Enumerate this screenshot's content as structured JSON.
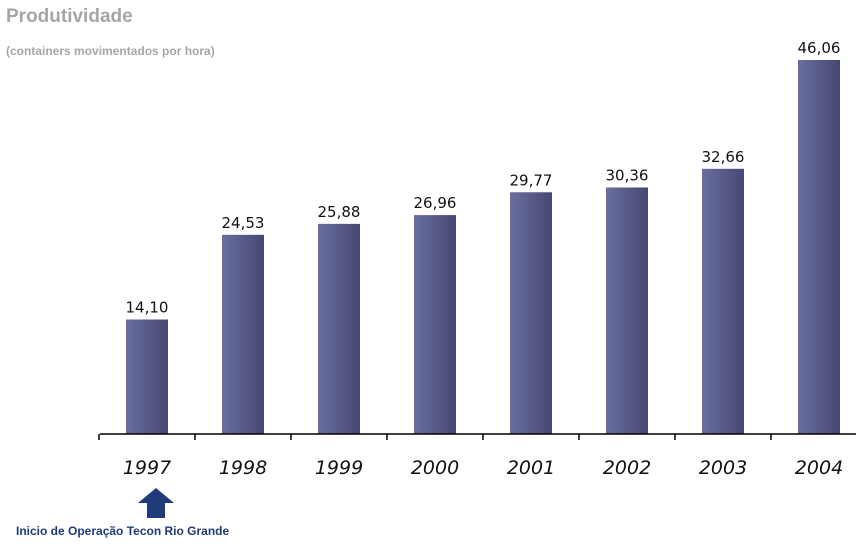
{
  "chart_data": {
    "type": "bar",
    "title": "Produtividade",
    "subtitle": "(containers movimentados por hora)",
    "categories": [
      "1997",
      "1998",
      "1999",
      "2000",
      "2001",
      "2002",
      "2003",
      "2004"
    ],
    "values": [
      14.1,
      24.53,
      25.88,
      26.96,
      29.77,
      30.36,
      32.66,
      46.06
    ],
    "value_labels": [
      "14,10",
      "24,53",
      "25,88",
      "26,96",
      "29,77",
      "30,36",
      "32,66",
      "46,06"
    ],
    "ylim": [
      0,
      50
    ],
    "grid": false,
    "colors": {
      "bar": "#454873",
      "bar_light": "#6b6f9e",
      "axis": "#000000",
      "title": "#a6a6a6",
      "annotation": "#1f3b7a"
    }
  },
  "annotation": {
    "text": "Inicio de Operação Tecon Rio Grande",
    "icon": "up-arrow-icon",
    "category": "1997"
  }
}
